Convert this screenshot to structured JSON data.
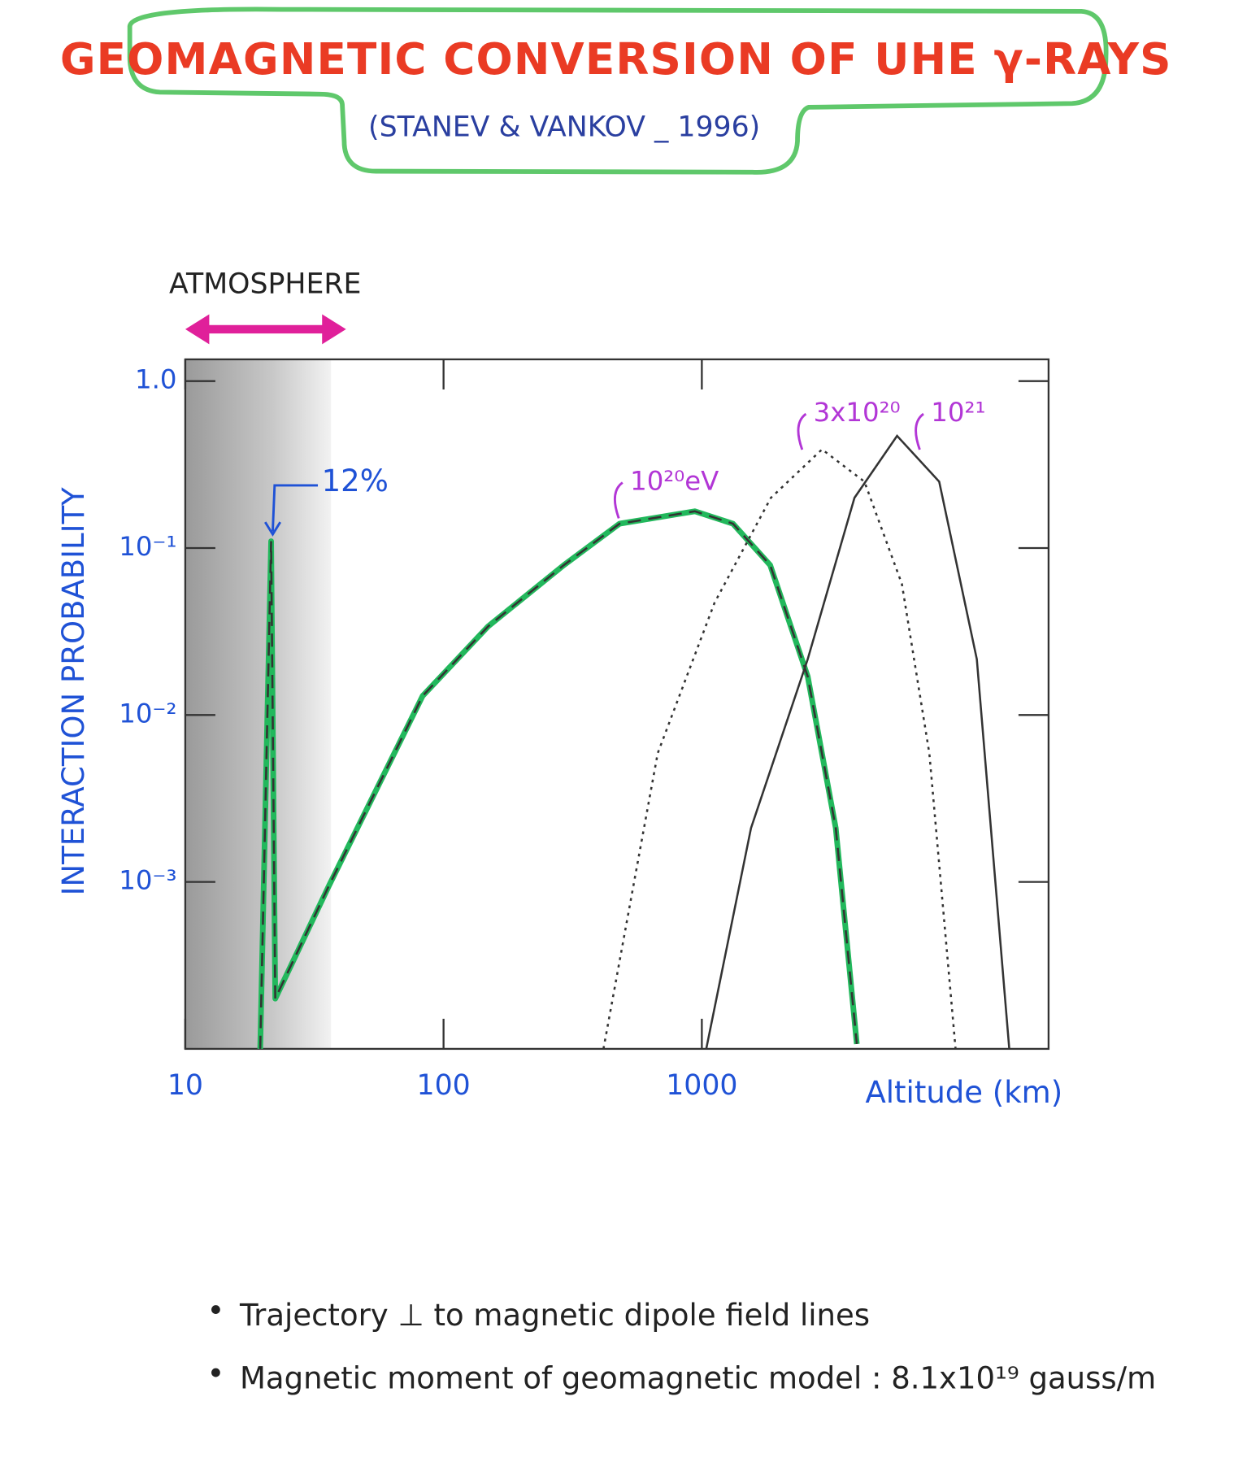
{
  "chart_data": {
    "type": "line",
    "title": "GEOMAGNETIC CONVERSION OF UHE γ-RAYS",
    "subtitle": "(STANEV & VANKOV _ 1996)",
    "region_label": "ATMOSPHERE",
    "x_label": "Altitude (km)",
    "y_label": "INTERACTION PROBABILITY",
    "log_x": true,
    "log_y": true,
    "xlim": [
      10,
      22000
    ],
    "ylim": [
      0.0001,
      1.35
    ],
    "xticks": [
      10,
      100,
      1000
    ],
    "yticks": [
      {
        "value": 1,
        "label": "1.0"
      },
      {
        "value": 0.1,
        "label": "10⁻¹"
      },
      {
        "value": 0.01,
        "label": "10⁻²"
      },
      {
        "value": 0.001,
        "label": "10⁻³"
      }
    ],
    "series": [
      {
        "name": "10²⁰eV",
        "color": "#22b85c",
        "line_style": "dashed",
        "x": [
          19.5,
          21.5,
          22.3,
          36,
          83,
          149,
          292,
          480,
          940,
          1320,
          1840,
          2570,
          3300,
          3980
        ],
        "values": [
          0.0001,
          0.11,
          0.0002,
          0.00095,
          0.013,
          0.034,
          0.079,
          0.14,
          0.166,
          0.14,
          0.079,
          0.017,
          0.0021,
          0.000107
        ]
      },
      {
        "name": "3x10²⁰",
        "color": "#333333",
        "line_style": "dotted",
        "x": [
          416,
          675,
          1120,
          1850,
          2920,
          4260,
          5950,
          7600,
          9600
        ],
        "values": [
          0.0001,
          0.0059,
          0.047,
          0.2,
          0.39,
          0.25,
          0.061,
          0.0059,
          0.0001
        ]
      },
      {
        "name": "10²¹",
        "color": "#333333",
        "line_style": "solid",
        "x": [
          1040,
          1550,
          2570,
          3900,
          5700,
          8300,
          11600,
          15500
        ],
        "values": [
          0.0001,
          0.0021,
          0.0216,
          0.2,
          0.47,
          0.25,
          0.0216,
          0.0001
        ]
      }
    ],
    "annotations": [
      "12%"
    ],
    "notes": [
      "Trajectory ⊥ to magnetic dipole field lines",
      "Magnetic moment of geomagnetic model : 8.1x10¹⁹ gauss/m"
    ]
  }
}
